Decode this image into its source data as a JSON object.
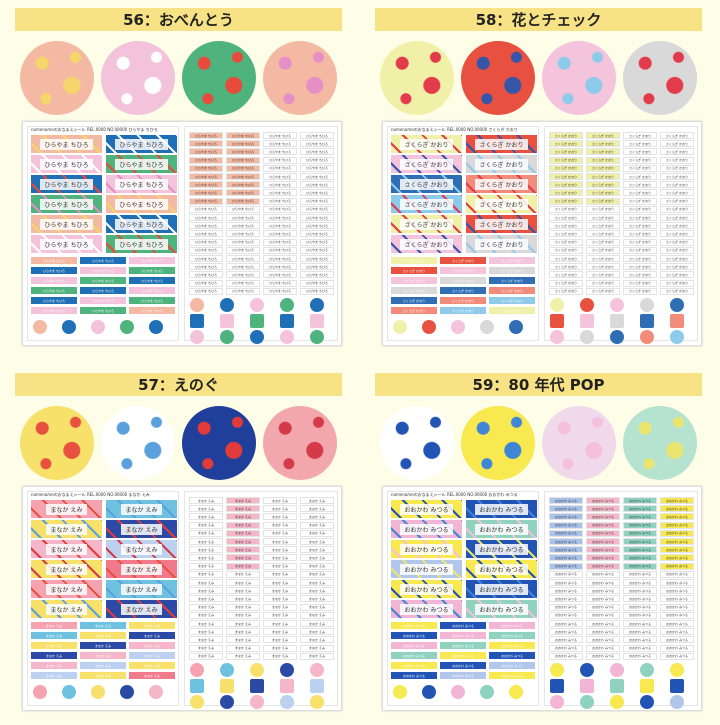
{
  "products": [
    {
      "title": "56：おべんとう",
      "name": "ひらやま ちひろ",
      "header": "namenameのおなまえシール  REL.0000 NO.00000 ひらやま ちひろ",
      "circle_colors": [
        "#f4b9a3",
        "#f2c3da",
        "#4fb37e",
        "#f4b9a3"
      ],
      "accent_colors": [
        "#f5d66b",
        "#ffffff",
        "#e64b3c",
        "#e58fc4"
      ],
      "label_colors": [
        "#f4b9a3",
        "#1e6fb5",
        "#f2c3da",
        "#4fb37e",
        "#1e6fb5",
        "#f2c3da",
        "#4fb37e",
        "#f4b9a3"
      ]
    },
    {
      "title": "58：花とチェック",
      "name": "さくらぎ かおり",
      "header": "namenameのおなまえシール  REL.0000 NO.00000 さくらぎ かおり",
      "circle_colors": [
        "#f1f0a8",
        "#e8513f",
        "#f4c3dc",
        "#d9d9d9"
      ],
      "accent_colors": [
        "#e23b4b",
        "#3556a8",
        "#8ecbea",
        "#e23b4b"
      ],
      "label_colors": [
        "#f1f0a8",
        "#e8513f",
        "#f4c3dc",
        "#d9d9d9",
        "#2f6db5",
        "#f28b7a",
        "#8ecbea",
        "#f1f0a8"
      ]
    },
    {
      "title": "57：えのぐ",
      "name": "まなか えみ",
      "header": "namenameのおなまえシール  REL.0000 NO.00000 まなか えみ",
      "circle_colors": [
        "#f7e16a",
        "#ffffff",
        "#1f3f9a",
        "#f2a7ad"
      ],
      "accent_colors": [
        "#e8503f",
        "#5aa0dd",
        "#e23b3b",
        "#d43a48"
      ],
      "label_colors": [
        "#f5a3b0",
        "#6fc1e0",
        "#f7e16a",
        "#2a4aa5",
        "#f4b6c8",
        "#bcd0f0",
        "#f7e16a",
        "#f07a8c"
      ]
    },
    {
      "title": "59：80 年代 POP",
      "name": "おおかわ みつる",
      "header": "namenameのおなまえシール  REL.0000 NO.00000 おおかわ みつる",
      "circle_colors": [
        "#ffffff",
        "#f7e94f",
        "#f1d9ec",
        "#b6e3cf"
      ],
      "accent_colors": [
        "#2254b6",
        "#3f86d8",
        "#f4c0dc",
        "#e9e56e"
      ],
      "label_colors": [
        "#f7e94f",
        "#2254b6",
        "#f2b5d6",
        "#8fd3be",
        "#f7e94f",
        "#2254b6",
        "#b0c6ea",
        "#f7e94f"
      ]
    }
  ],
  "small_colors": [
    [
      "#f4b9a3",
      "#f4b9a3",
      "#ffffff",
      "#ffffff"
    ],
    [
      "#f1f0a8",
      "#f1f0a8",
      "#ffffff",
      "#ffffff"
    ],
    [
      "#ffffff",
      "#f4b6c8",
      "#ffffff",
      "#ffffff"
    ],
    [
      "#a8c2ea",
      "#f4b6c8",
      "#8fd3be",
      "#f7e94f"
    ]
  ]
}
